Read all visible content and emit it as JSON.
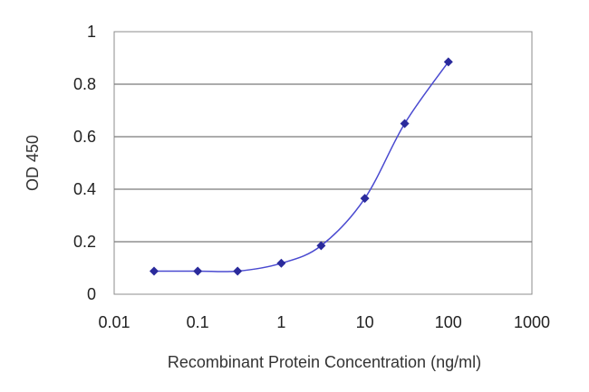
{
  "chart_data": {
    "type": "line",
    "title": "",
    "xlabel": "Recombinant Protein Concentration (ng/ml)",
    "ylabel": "OD 450",
    "x_scale": "log",
    "xlim": [
      0.01,
      1000
    ],
    "ylim": [
      0,
      1
    ],
    "x_ticks": [
      "0.01",
      "0.1",
      "1",
      "10",
      "100",
      "1000"
    ],
    "y_ticks": [
      "0",
      "0.2",
      "0.4",
      "0.6",
      "0.8",
      "1"
    ],
    "grid": "horizontal",
    "legend": "none",
    "series": [
      {
        "color": "#2a2a9c",
        "marker": "diamond",
        "points": [
          {
            "x": 0.03,
            "y": 0.088
          },
          {
            "x": 0.1,
            "y": 0.088
          },
          {
            "x": 0.3,
            "y": 0.088
          },
          {
            "x": 1,
            "y": 0.118
          },
          {
            "x": 3,
            "y": 0.185
          },
          {
            "x": 10,
            "y": 0.365
          },
          {
            "x": 30,
            "y": 0.65
          },
          {
            "x": 100,
            "y": 0.885
          }
        ]
      }
    ]
  }
}
